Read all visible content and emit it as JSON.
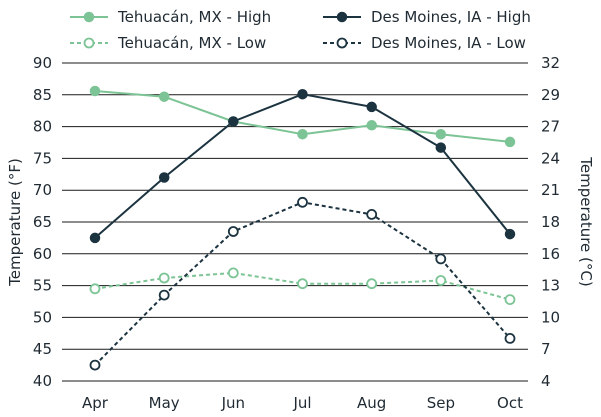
{
  "chart_data": {
    "type": "line",
    "title": "",
    "categories": [
      "Apr",
      "May",
      "Jun",
      "Jul",
      "Aug",
      "Sep",
      "Oct"
    ],
    "ylabel": "Temperature (°F)",
    "ylabel_right": "Temperature (°C)",
    "ylim": [
      40,
      90
    ],
    "yticks": [
      "90",
      "85",
      "80",
      "75",
      "70",
      "65",
      "60",
      "55",
      "50",
      "45",
      "40"
    ],
    "y2ticks": [
      "32",
      "29",
      "27",
      "24",
      "21",
      "18",
      "16",
      "13",
      "10",
      "7",
      "4"
    ],
    "grid": "horizontal",
    "legend_position": "top",
    "series": [
      {
        "name": "Tehuacán, MX - High",
        "color": "#7cc495",
        "dashed": false,
        "marker": "filled",
        "values": [
          85.6,
          84.7,
          80.8,
          78.8,
          80.2,
          78.8,
          77.6
        ]
      },
      {
        "name": "Tehuacán, MX - Low",
        "color": "#7cc495",
        "dashed": true,
        "marker": "open",
        "values": [
          54.5,
          56.2,
          57.0,
          55.3,
          55.3,
          55.8,
          52.8
        ]
      },
      {
        "name": "Des Moines, IA - High",
        "color": "#1c3340",
        "dashed": false,
        "marker": "filled",
        "values": [
          62.5,
          72.0,
          80.8,
          85.1,
          83.1,
          76.7,
          63.1
        ]
      },
      {
        "name": "Des Moines, IA - Low",
        "color": "#1c3340",
        "dashed": true,
        "marker": "open",
        "values": [
          42.5,
          53.5,
          63.5,
          68.1,
          66.2,
          59.2,
          46.7
        ]
      }
    ]
  }
}
